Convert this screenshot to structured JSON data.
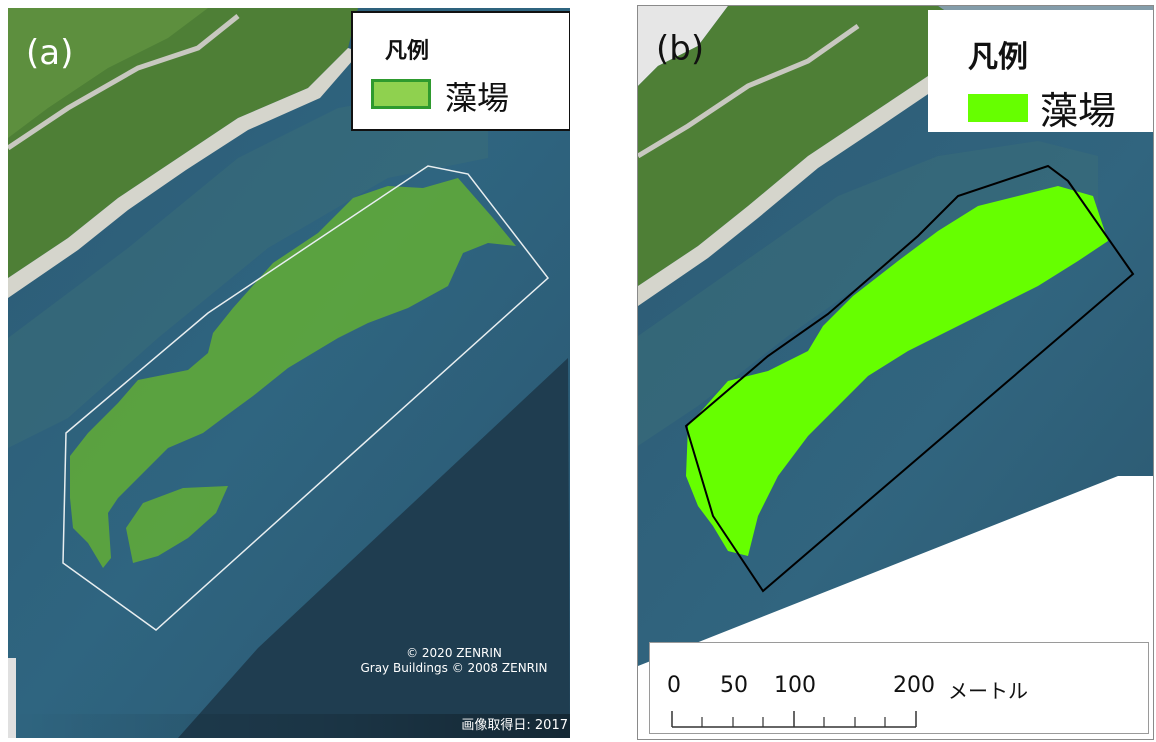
{
  "panel_a": {
    "label": "(a)",
    "legend": {
      "title": "凡例",
      "entry": "藻場",
      "swatch_color": "#8fd14f",
      "swatch_border": "#2e9a2e"
    },
    "credit_line1": "© 2020 ZENRIN",
    "credit_line2": "Gray Buildings © 2008 ZENRIN",
    "date_text": "画像取得日: 2017",
    "seagrass_color": "#5fa83a",
    "boundary_color": "#e8eef0"
  },
  "panel_b": {
    "label": "(b)",
    "legend": {
      "title": "凡例",
      "entry": "藻場",
      "swatch_color": "#66ff00"
    },
    "seagrass_color": "#66ff00",
    "boundary_color": "#000000",
    "scale": {
      "ticks": [
        "0",
        "50",
        "100",
        "200"
      ],
      "unit": "メートル"
    }
  },
  "colors": {
    "sea": "#2e5f7a",
    "deep_sea": "#1f3d50",
    "land": "#4e7f36",
    "shore": "#d5d5cc"
  }
}
